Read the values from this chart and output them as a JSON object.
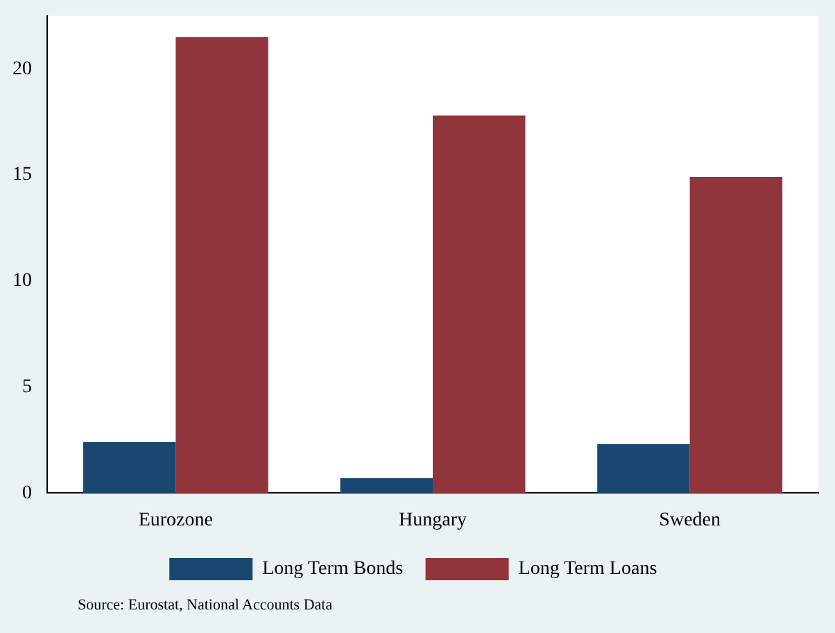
{
  "chart_data": {
    "type": "bar",
    "categories": [
      "Eurozone",
      "Hungary",
      "Sweden"
    ],
    "series": [
      {
        "name": "Long Term Bonds",
        "color": "#1a476f",
        "values": [
          2.4,
          0.7,
          2.3
        ]
      },
      {
        "name": "Long Term Loans",
        "color": "#90353b",
        "values": [
          21.5,
          17.8,
          14.9
        ]
      }
    ],
    "ylim": [
      0,
      22.5
    ],
    "yticks": [
      0,
      5,
      10,
      15,
      20
    ],
    "grid": false,
    "legend": "bottom",
    "annotations": [
      "Source: Eurostat, National Accounts Data"
    ]
  }
}
